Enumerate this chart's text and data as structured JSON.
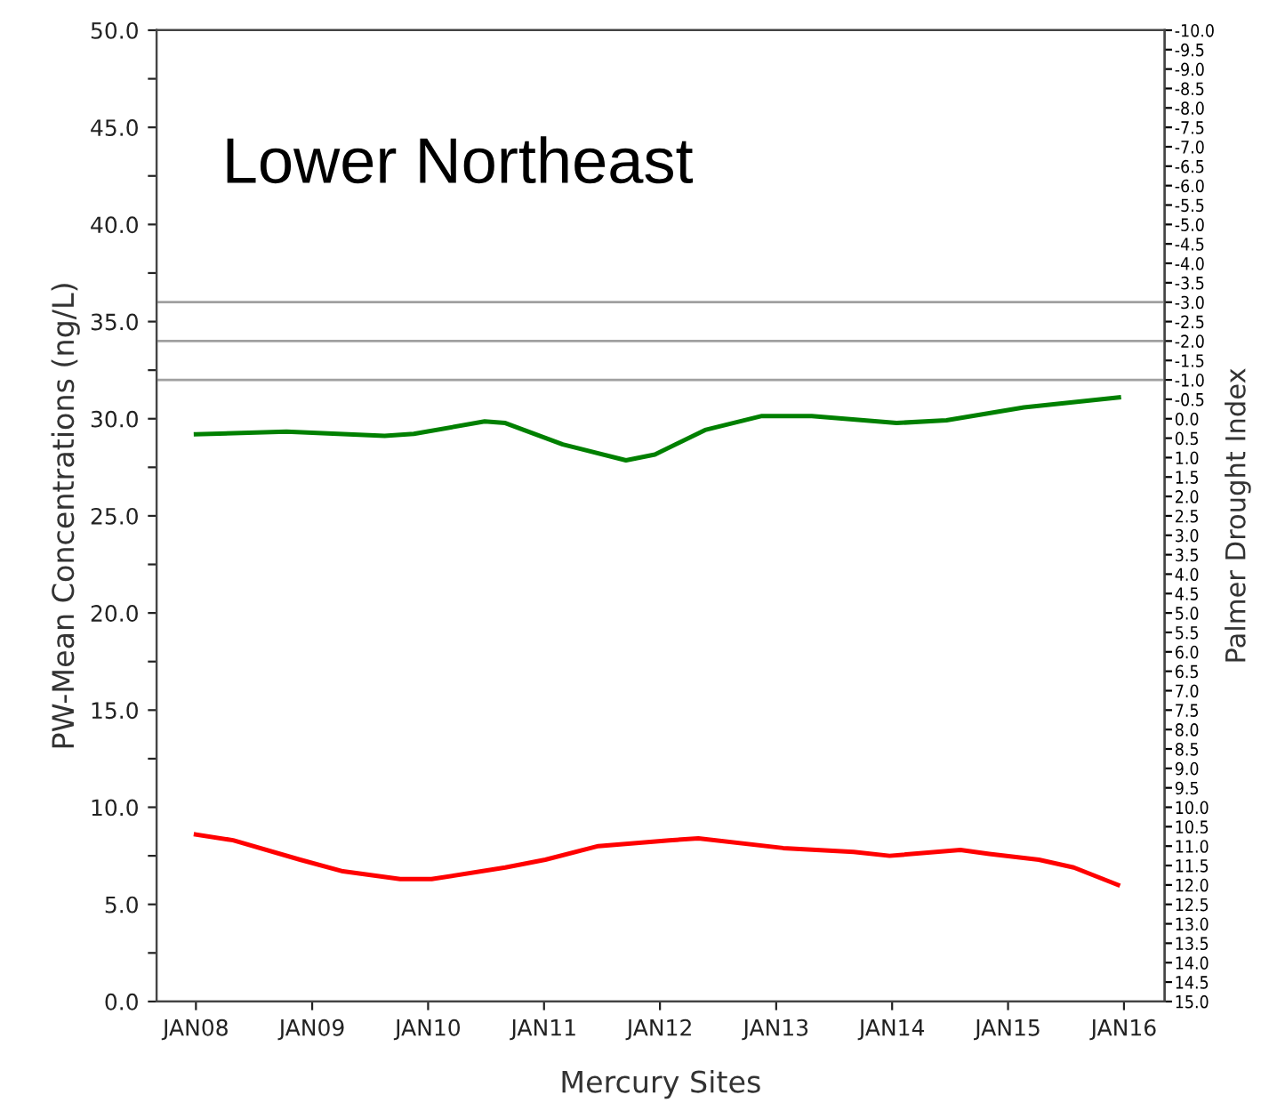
{
  "chart_data": {
    "type": "line",
    "xlabel": "Mercury Sites",
    "ylabel": "PW-Mean Concentrations (ng/L)",
    "y2label": "Palmer Drought Index",
    "annotations": [
      "Lower Northeast"
    ],
    "series": [
      {
        "color": "#ff0000",
        "x": [
          "2008-01-01",
          "2008-04-27",
          "2008-11-24",
          "2009-04-08",
          "2009-10-05",
          "2010-01-12",
          "2010-09-01",
          "2011-01-05",
          "2011-06-21",
          "2012-01-30",
          "2012-05-01",
          "2013-01-23",
          "2013-09-02",
          "2013-12-24",
          "2014-08-04",
          "2014-11-03",
          "2015-04-08",
          "2015-07-27",
          "2015-12-13"
        ],
        "values": [
          8.6,
          8.3,
          7.3,
          6.7,
          6.3,
          6.3,
          6.9,
          7.3,
          8.0,
          8.3,
          8.4,
          7.9,
          7.7,
          7.5,
          7.8,
          7.6,
          7.3,
          6.9,
          6.0
        ]
      },
      {
        "color": "#008000",
        "axis": "y2",
        "x": [
          "2008-01-01",
          "2008-10-12",
          "2009-08-17",
          "2009-11-17",
          "2010-06-28",
          "2010-09-01",
          "2011-03-01",
          "2011-09-16",
          "2011-12-16",
          "2012-05-22",
          "2012-11-17",
          "2013-04-23",
          "2014-01-15",
          "2014-06-21",
          "2015-02-20",
          "2015-12-16"
        ],
        "values": [
          0.4,
          0.33,
          0.44,
          0.39,
          0.07,
          0.11,
          0.66,
          1.07,
          0.92,
          0.29,
          -0.07,
          -0.07,
          0.11,
          0.04,
          -0.29,
          -0.55
        ]
      }
    ],
    "ref_lines": [
      {
        "axis": "y2",
        "value": -3,
        "color": "#a0a0a0"
      },
      {
        "axis": "y2",
        "value": -2,
        "color": "#a0a0a0"
      },
      {
        "axis": "y2",
        "value": -1,
        "color": "#a0a0a0"
      }
    ],
    "xlim": [
      "2007-08-30",
      "2016-05-08"
    ],
    "xticks": [
      {
        "value": "2008-01",
        "label": "JAN08"
      },
      {
        "value": "2009-01",
        "label": "JAN09"
      },
      {
        "value": "2010-01",
        "label": "JAN10"
      },
      {
        "value": "2011-01",
        "label": "JAN11"
      },
      {
        "value": "2012-01",
        "label": "JAN12"
      },
      {
        "value": "2013-01",
        "label": "JAN13"
      },
      {
        "value": "2014-01",
        "label": "JAN14"
      },
      {
        "value": "2015-01",
        "label": "JAN15"
      },
      {
        "value": "2016-01",
        "label": "JAN16"
      }
    ],
    "ylim": [
      0,
      50
    ],
    "yticks": [
      {
        "value": 0,
        "label": "0.0"
      },
      {
        "value": 2.5,
        "label": null
      },
      {
        "value": 5,
        "label": "5.0"
      },
      {
        "value": 7.5,
        "label": null
      },
      {
        "value": 10,
        "label": "10.0"
      },
      {
        "value": 12.5,
        "label": null
      },
      {
        "value": 15,
        "label": "15.0"
      },
      {
        "value": 17.5,
        "label": null
      },
      {
        "value": 20,
        "label": "20.0"
      },
      {
        "value": 22.5,
        "label": null
      },
      {
        "value": 25,
        "label": "25.0"
      },
      {
        "value": 27.5,
        "label": null
      },
      {
        "value": 30,
        "label": "30.0"
      },
      {
        "value": 32.5,
        "label": null
      },
      {
        "value": 35,
        "label": "35.0"
      },
      {
        "value": 37.5,
        "label": null
      },
      {
        "value": 40,
        "label": "40.0"
      },
      {
        "value": 42.5,
        "label": null
      },
      {
        "value": 45,
        "label": "45.0"
      },
      {
        "value": 47.5,
        "label": null
      },
      {
        "value": 50,
        "label": "50.0"
      }
    ],
    "y2lim": [
      15,
      -10
    ],
    "y2ticks": [
      {
        "value": -10,
        "label": "-10.0"
      },
      {
        "value": -9.5,
        "label": "-9.5"
      },
      {
        "value": -9,
        "label": "-9.0"
      },
      {
        "value": -8.5,
        "label": "-8.5"
      },
      {
        "value": -8,
        "label": "-8.0"
      },
      {
        "value": -7.5,
        "label": "-7.5"
      },
      {
        "value": -7,
        "label": "-7.0"
      },
      {
        "value": -6.5,
        "label": "-6.5"
      },
      {
        "value": -6,
        "label": "-6.0"
      },
      {
        "value": -5.5,
        "label": "-5.5"
      },
      {
        "value": -5,
        "label": "-5.0"
      },
      {
        "value": -4.5,
        "label": "-4.5"
      },
      {
        "value": -4,
        "label": "-4.0"
      },
      {
        "value": -3.5,
        "label": "-3.5"
      },
      {
        "value": -3,
        "label": "-3.0"
      },
      {
        "value": -2.5,
        "label": "-2.5"
      },
      {
        "value": -2,
        "label": "-2.0"
      },
      {
        "value": -1.5,
        "label": "-1.5"
      },
      {
        "value": -1,
        "label": "-1.0"
      },
      {
        "value": -0.5,
        "label": "-0.5"
      },
      {
        "value": 0,
        "label": "0.0"
      },
      0.5,
      {
        "value": 1,
        "label": "1.0"
      },
      1.5,
      {
        "value": 2,
        "label": "2.0"
      },
      2.5,
      {
        "value": 3,
        "label": "3.0"
      },
      3.5,
      {
        "value": 4,
        "label": "4.0"
      },
      4.5,
      {
        "value": 5,
        "label": "5.0"
      },
      5.5,
      {
        "value": 6,
        "label": "6.0"
      },
      6.5,
      {
        "value": 7,
        "label": "7.0"
      },
      7.5,
      {
        "value": 8,
        "label": "8.0"
      },
      8.5,
      {
        "value": 9,
        "label": "9.0"
      },
      9.5,
      {
        "value": 10,
        "label": "10.0"
      },
      10.5,
      {
        "value": 11,
        "label": "11.0"
      },
      11.5,
      {
        "value": 12,
        "label": "12.0"
      },
      12.5,
      {
        "value": 13,
        "label": "13.0"
      },
      13.5,
      {
        "value": 14,
        "label": "14.0"
      },
      14.5,
      {
        "value": 15,
        "label": "15.0"
      }
    ],
    "grid": false,
    "marker": "none",
    "line_style": "solid"
  }
}
